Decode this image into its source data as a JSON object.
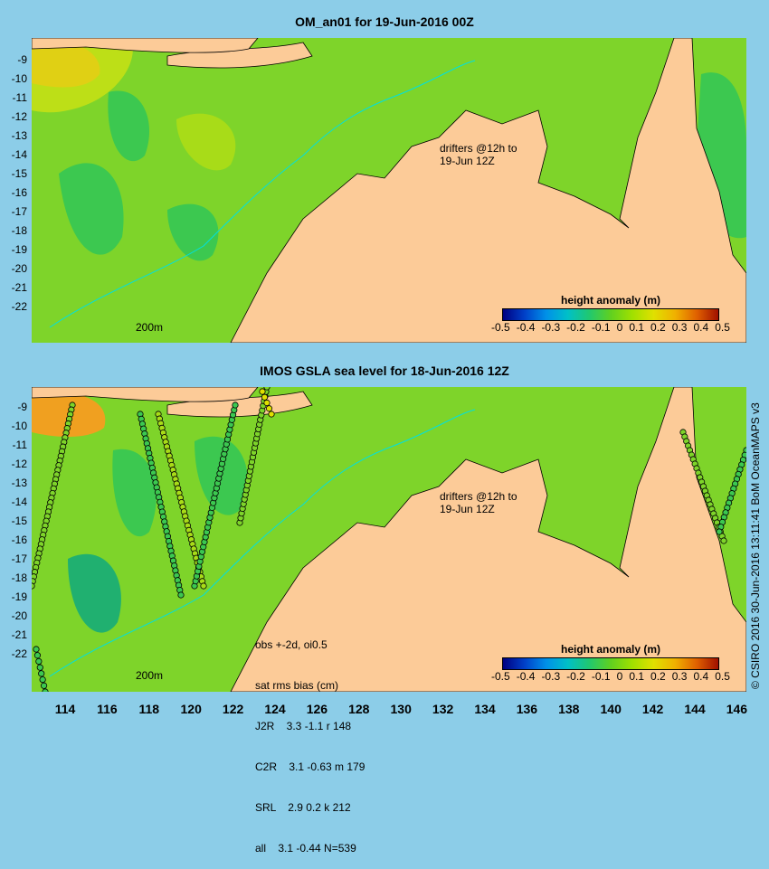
{
  "top": {
    "title": "OM_an01 for 19-Jun-2016 00Z"
  },
  "bottom": {
    "title": "IMOS GSLA sea level  for 18-Jun-2016 12Z",
    "stats": [
      "obs +-2d, oi0.5",
      "sat rms bias (cm)",
      "J2R    3.3 -1.1 r 148",
      "C2R    3.1 -0.63 m 179",
      "SRL    2.9 0.2 k 212",
      "all    3.1 -0.44 N=539"
    ]
  },
  "legend": {
    "title": "height anomaly (m)",
    "ticks": [
      "-0.5",
      "-0.4",
      "-0.3",
      "-0.2",
      "-0.1",
      "0",
      "0.1",
      "0.2",
      "0.3",
      "0.4",
      "0.5"
    ],
    "colors": [
      "#000080",
      "#0040c8",
      "#0090e8",
      "#00c0c8",
      "#20c870",
      "#60d020",
      "#a0e000",
      "#e0e000",
      "#f0b000",
      "#e06000",
      "#a01000"
    ]
  },
  "drifters_label": [
    "drifters @12h to",
    "19-Jun 12Z"
  ],
  "contour_label": "200m",
  "y_labels": [
    "-9",
    "-10",
    "-11",
    "-12",
    "-13",
    "-14",
    "-15",
    "-16",
    "-17",
    "-18",
    "-19",
    "-20",
    "-21",
    "-22"
  ],
  "x_labels": [
    "114",
    "116",
    "118",
    "120",
    "122",
    "124",
    "126",
    "128",
    "130",
    "132",
    "134",
    "136",
    "138",
    "140",
    "142",
    "144",
    "146"
  ],
  "credit": "© CSIRO 2016  30-Jun-2016 13:11:41 BoM OceanMAPS v3",
  "colors": {
    "background": "#8ccde8",
    "land": "#fccb98",
    "shelf": "#a0a090",
    "ocean_base": "#7ed42a"
  }
}
